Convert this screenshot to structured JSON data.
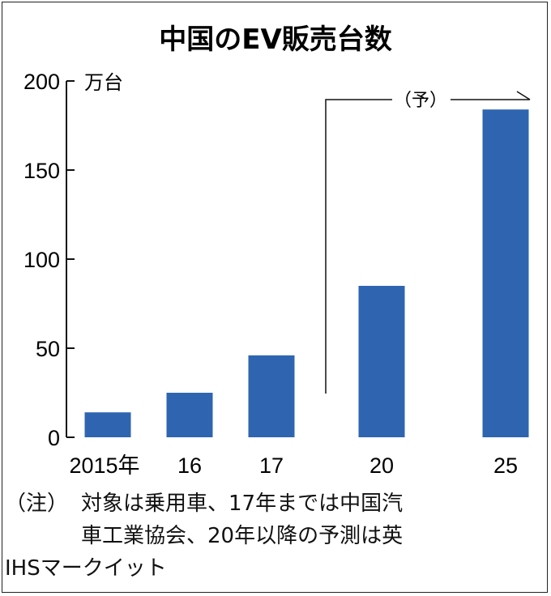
{
  "chart_data": {
    "type": "bar",
    "title": "中国のEV販売台数",
    "ylabel": "万台",
    "ylim": [
      0,
      200
    ],
    "yticks": [
      "200",
      "150",
      "100",
      "50",
      "0"
    ],
    "ytick_values": [
      200,
      150,
      100,
      50,
      0
    ],
    "categories": [
      "2015年",
      "16",
      "17",
      "20",
      "25"
    ],
    "values": [
      14,
      25,
      46,
      85,
      184
    ],
    "forecast_label": "（予）",
    "bar_color": "#2f65b0"
  },
  "note": {
    "label": "（注）",
    "lines": [
      "対象は乗用車、17年までは中国汽",
      "車工業協会、20年以降の予測は英",
      "IHSマークイット"
    ]
  }
}
